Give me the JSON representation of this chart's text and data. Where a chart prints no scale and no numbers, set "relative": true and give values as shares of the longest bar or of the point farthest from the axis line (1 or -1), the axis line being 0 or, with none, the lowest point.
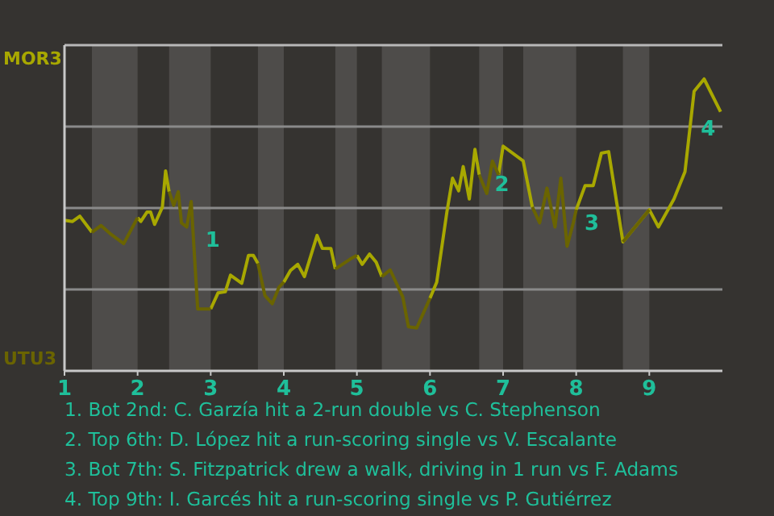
{
  "chart_data": {
    "type": "line",
    "relative": true,
    "xlim": [
      1,
      10
    ],
    "xticks": [
      1,
      2,
      3,
      4,
      5,
      6,
      7,
      8,
      9
    ],
    "grid": "y",
    "legend": "left",
    "marker": "none",
    "line_style": "solid",
    "x": [
      1,
      1.11,
      1.21,
      1.375,
      1.5,
      1.625,
      1.81,
      2,
      2.044,
      2.128,
      2.178,
      2.233,
      2.339,
      2.383,
      2.431,
      2.494,
      2.556,
      2.6,
      2.672,
      2.733,
      2.789,
      2.822,
      3,
      3.1,
      3.2,
      3.271,
      3.425,
      3.517,
      3.583,
      3.646,
      3.742,
      3.842,
      3.933,
      4,
      4.091,
      4.191,
      4.282,
      4.455,
      4.527,
      4.645,
      4.705,
      4.909,
      5,
      5.073,
      5.173,
      5.264,
      5.341,
      5.455,
      5.627,
      5.705,
      5.818,
      6,
      6.092,
      6.231,
      6.308,
      6.392,
      6.454,
      6.538,
      6.615,
      6.673,
      6.777,
      6.854,
      6.938,
      7,
      7.275,
      7.4,
      7.5,
      7.6,
      7.71,
      7.79,
      7.875,
      7.96,
      8,
      8.122,
      8.233,
      8.344,
      8.444,
      8.639,
      9,
      9.125,
      9.338,
      9.488,
      9.613,
      9.75,
      9.975
    ],
    "series": [
      {
        "name": "MOR3",
        "color": "#a8a800",
        "values": [
          0.516,
          0.512,
          0.53,
          0.475,
          null,
          null,
          null,
          0.525,
          0.512,
          0.544,
          0.544,
          0.502,
          0.561,
          0.685,
          0.614,
          null,
          null,
          null,
          null,
          null,
          null,
          null,
          0.212,
          0.267,
          0.271,
          0.328,
          0.3,
          0.396,
          0.396,
          0.368,
          null,
          null,
          null,
          0.304,
          0.344,
          0.365,
          0.323,
          0.464,
          0.42,
          0.419,
          0.349,
          null,
          0.396,
          0.365,
          0.4,
          0.372,
          0.323,
          null,
          null,
          null,
          null,
          0.249,
          0.304,
          0.544,
          0.66,
          0.617,
          0.7,
          0.589,
          0.759,
          0.672,
          null,
          null,
          0.672,
          0.77,
          0.719,
          0.561,
          null,
          null,
          null,
          null,
          null,
          null,
          0.552,
          0.635,
          0.635,
          0.746,
          0.751,
          0.442,
          0.552,
          0.493,
          0.589,
          0.682,
          0.958,
          1,
          0.888
        ]
      },
      {
        "name": "UTU3",
        "color": "#6a6400",
        "values": [
          null,
          null,
          null,
          0.475,
          0.498,
          0.47,
          0.436,
          0.525,
          null,
          null,
          null,
          null,
          null,
          null,
          0.614,
          0.567,
          0.614,
          0.507,
          0.493,
          0.58,
          0.349,
          0.212,
          0.212,
          null,
          null,
          null,
          null,
          null,
          null,
          0.368,
          0.258,
          0.23,
          0.286,
          0.304,
          null,
          null,
          null,
          null,
          null,
          null,
          0.349,
          0.383,
          0.396,
          null,
          null,
          null,
          0.323,
          0.346,
          0.254,
          0.151,
          0.147,
          0.249,
          null,
          null,
          null,
          null,
          null,
          null,
          null,
          0.672,
          0.608,
          0.719,
          0.672,
          null,
          null,
          0.561,
          0.507,
          0.626,
          0.493,
          0.66,
          0.427,
          0.507,
          0.552,
          null,
          null,
          null,
          null,
          0.442,
          0.552,
          null,
          null,
          null,
          null,
          null,
          null
        ]
      }
    ],
    "bands": [
      {
        "axis": "x",
        "from": 1.375,
        "to": 2,
        "color": "#4e4c4a"
      },
      {
        "axis": "x",
        "from": 2.431,
        "to": 3,
        "color": "#4e4c4a"
      },
      {
        "axis": "x",
        "from": 3.646,
        "to": 4,
        "color": "#4e4c4a"
      },
      {
        "axis": "x",
        "from": 4.705,
        "to": 5,
        "color": "#4e4c4a"
      },
      {
        "axis": "x",
        "from": 5.341,
        "to": 6,
        "color": "#4e4c4a"
      },
      {
        "axis": "x",
        "from": 6.673,
        "to": 7,
        "color": "#4e4c4a"
      },
      {
        "axis": "x",
        "from": 7.275,
        "to": 8,
        "color": "#4e4c4a"
      },
      {
        "axis": "x",
        "from": 8.639,
        "to": 9,
        "color": "#4e4c4a"
      }
    ],
    "annotations": [
      {
        "text": "1",
        "x": 2.772,
        "y": 0.446
      },
      {
        "text": "2",
        "x": 6.73,
        "y": 0.636
      },
      {
        "text": "3",
        "x": 7.96,
        "y": 0.502
      },
      {
        "text": "4",
        "x": 9.55,
        "y": 0.826
      },
      "1. Bot 2nd: C. Garzía hit a 2-run double vs C. Stephenson",
      "2. Top 6th: D. López hit a run-scoring single vs V. Escalante",
      "3. Bot 7th: S. Fitzpatrick drew a walk, driving in 1 run vs F. Adams",
      "4. Top 9th: I. Garcés hit a run-scoring single vs P. Gutiérrez"
    ]
  }
}
